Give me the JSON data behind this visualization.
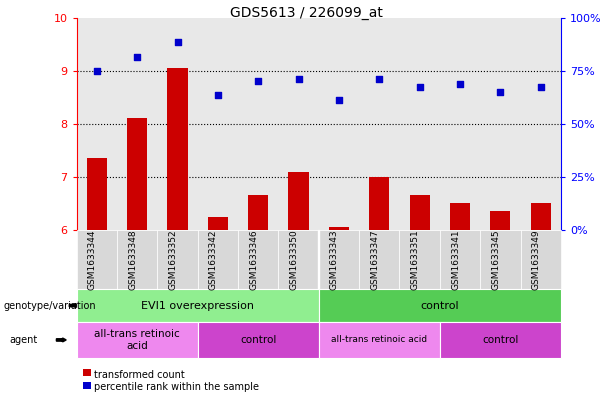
{
  "title": "GDS5613 / 226099_at",
  "samples": [
    "GSM1633344",
    "GSM1633348",
    "GSM1633352",
    "GSM1633342",
    "GSM1633346",
    "GSM1633350",
    "GSM1633343",
    "GSM1633347",
    "GSM1633351",
    "GSM1633341",
    "GSM1633345",
    "GSM1633349"
  ],
  "bar_values": [
    7.35,
    8.1,
    9.05,
    6.25,
    6.65,
    7.1,
    6.05,
    7.0,
    6.65,
    6.5,
    6.35,
    6.5
  ],
  "scatter_values": [
    9.0,
    9.25,
    9.55,
    8.55,
    8.8,
    8.85,
    8.45,
    8.85,
    8.7,
    8.75,
    8.6,
    8.7
  ],
  "ylim_left": [
    6,
    10
  ],
  "ylim_right": [
    0,
    100
  ],
  "yticks_left": [
    6,
    7,
    8,
    9,
    10
  ],
  "yticks_right": [
    0,
    25,
    50,
    75,
    100
  ],
  "ytick_labels_right": [
    "0%",
    "25%",
    "50%",
    "75%",
    "100%"
  ],
  "bar_color": "#cc0000",
  "scatter_color": "#0000cc",
  "bar_width": 0.5,
  "genotype_groups": [
    {
      "label": "EVI1 overexpression",
      "start": 0,
      "end": 6,
      "color": "#90ee90"
    },
    {
      "label": "control",
      "start": 6,
      "end": 12,
      "color": "#55cc55"
    }
  ],
  "agent_groups": [
    {
      "label": "all-trans retinoic\nacid",
      "start": 0,
      "end": 3,
      "color": "#ee88ee"
    },
    {
      "label": "control",
      "start": 3,
      "end": 6,
      "color": "#cc44cc"
    },
    {
      "label": "all-trans retinoic acid",
      "start": 6,
      "end": 9,
      "color": "#ee88ee"
    },
    {
      "label": "control",
      "start": 9,
      "end": 12,
      "color": "#cc44cc"
    }
  ],
  "legend_items": [
    {
      "label": "transformed count",
      "color": "#cc0000"
    },
    {
      "label": "percentile rank within the sample",
      "color": "#0000cc"
    }
  ],
  "row_labels": [
    "genotype/variation",
    "agent"
  ],
  "plot_bg": "#e8e8e8",
  "sample_bg": "#d8d8d8"
}
